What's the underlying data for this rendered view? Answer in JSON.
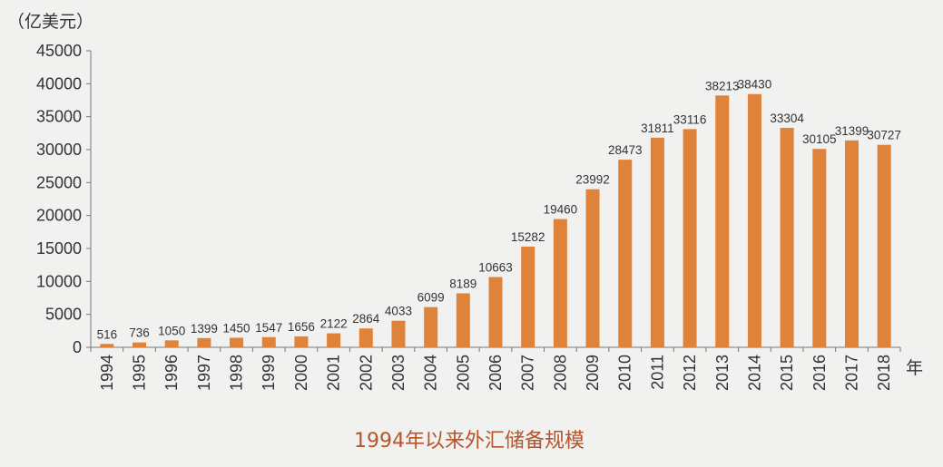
{
  "chart_data": {
    "type": "bar",
    "title": "1994年以来外汇储备规模",
    "ylabel": "（亿美元）",
    "xlabel": "年",
    "ylim": [
      0,
      45000
    ],
    "yticks": [
      0,
      5000,
      10000,
      15000,
      20000,
      25000,
      30000,
      35000,
      40000,
      45000
    ],
    "grid": false,
    "categories": [
      "1994",
      "1995",
      "1996",
      "1997",
      "1998",
      "1999",
      "2000",
      "2001",
      "2002",
      "2003",
      "2004",
      "2005",
      "2006",
      "2007",
      "2008",
      "2009",
      "2010",
      "2011",
      "2012",
      "2013",
      "2014",
      "2015",
      "2016",
      "2017",
      "2018"
    ],
    "values": [
      516,
      736,
      1050,
      1399,
      1450,
      1547,
      1656,
      2122,
      2864,
      4033,
      6099,
      8189,
      10663,
      15282,
      19460,
      23992,
      28473,
      31811,
      33116,
      38213,
      38430,
      33304,
      30105,
      31399,
      30727
    ]
  },
  "colors": {
    "bar": "#e0833a",
    "axis": "#777777",
    "title": "#b4552c",
    "background": "#f1f1f0"
  }
}
